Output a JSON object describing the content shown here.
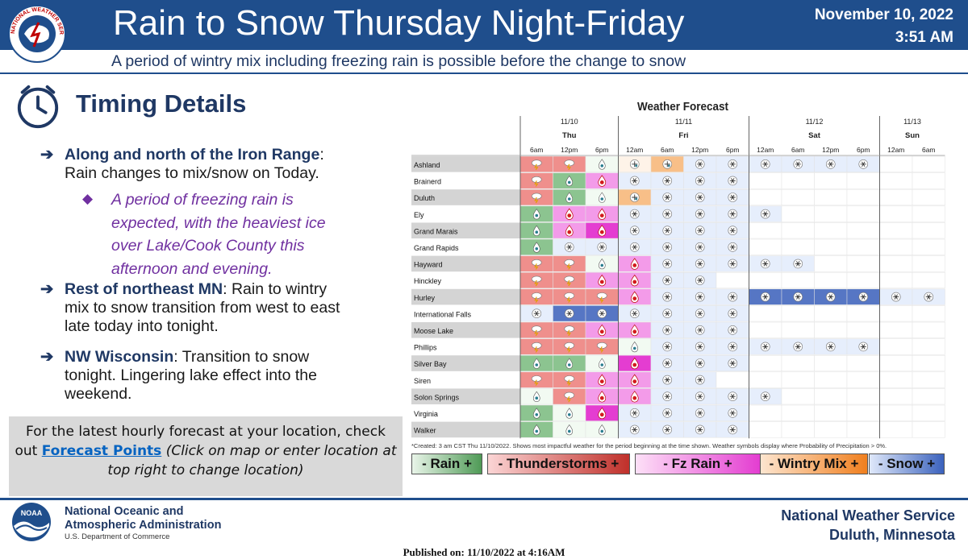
{
  "header": {
    "title": "Rain to Snow Thursday Night-Friday",
    "date": "November 10, 2022",
    "time": "3:51 AM",
    "subtitle": "A period of wintry mix including freezing rain is possible before the change to snow",
    "logo_text": "NATIONAL WEATHER SERVICE"
  },
  "section": {
    "title": "Timing Details"
  },
  "bullets": [
    {
      "bold": "Along and north of the Iron Range",
      "text1": ":",
      "text2": "Rain changes to mix/snow on Today."
    },
    {
      "bold": "Rest of northeast MN",
      "text1": ": Rain to wintry",
      "text2": "mix to snow transition from west to east",
      "text3": "late today into tonight."
    },
    {
      "bold": "NW Wisconsin",
      "text1": ": Transition to snow",
      "text2": "tonight. Lingering lake effect into the",
      "text3": "weekend."
    }
  ],
  "sub_bullet": {
    "l1": "A period of freezing rain is",
    "l2": "expected, with the heaviest ice",
    "l3": "over Lake/Cook County this",
    "l4": "afternoon and evening."
  },
  "info": {
    "line1": "For the latest hourly forecast at your location, check",
    "out": "out ",
    "link": "Forecast Points",
    "note1": "(Click on map or enter location at",
    "note2": "top right to change location)"
  },
  "forecast": {
    "title": "Weather Forecast",
    "days": [
      {
        "date": "11/10",
        "day": "Thu"
      },
      {
        "date": "11/11",
        "day": "Fri"
      },
      {
        "date": "11/12",
        "day": "Sat"
      },
      {
        "date": "11/13",
        "day": "Sun"
      }
    ],
    "times": [
      "6am",
      "12pm",
      "6pm",
      "12am",
      "6am",
      "12pm",
      "6pm",
      "12am",
      "6am",
      "12pm",
      "6pm",
      "12am",
      "6am"
    ],
    "locations": [
      "Ashland",
      "Brainerd",
      "Duluth",
      "Ely",
      "Grand Marais",
      "Grand Rapids",
      "Hayward",
      "Hinckley",
      "Hurley",
      "International Falls",
      "Moose Lake",
      "Phillips",
      "Silver Bay",
      "Siren",
      "Solon Springs",
      "Virginia",
      "Walker"
    ],
    "codes_legend": "r=rain, t=thunderstorms, f=freezing rain, w=wintry mix, s=snow; case=intensity (upper=heavy, lower=light, suffix 1=moderate); '-'=none",
    "cells": [
      [
        "t1",
        "t1",
        "r",
        "w",
        "w1",
        "s",
        "s",
        "s",
        "s",
        "s",
        "s",
        "-",
        "-"
      ],
      [
        "t1",
        "r1",
        "f1",
        "s",
        "s",
        "s",
        "s",
        "-",
        "-",
        "-",
        "-",
        "-",
        "-"
      ],
      [
        "t1",
        "r1",
        "r",
        "w1",
        "s",
        "s",
        "s",
        "-",
        "-",
        "-",
        "-",
        "-",
        "-"
      ],
      [
        "r1",
        "f1",
        "f1",
        "s",
        "s",
        "s",
        "s",
        "s",
        "-",
        "-",
        "-",
        "-",
        "-"
      ],
      [
        "r1",
        "f1",
        "F",
        "s",
        "s",
        "s",
        "s",
        "-",
        "-",
        "-",
        "-",
        "-",
        "-"
      ],
      [
        "r1",
        "s",
        "s",
        "s",
        "s",
        "s",
        "s",
        "-",
        "-",
        "-",
        "-",
        "-",
        "-"
      ],
      [
        "t1",
        "t1",
        "r",
        "f1",
        "s",
        "s",
        "s",
        "s",
        "s",
        "-",
        "-",
        "-",
        "-"
      ],
      [
        "t1",
        "t1",
        "f1",
        "f1",
        "s",
        "s",
        "-",
        "-",
        "-",
        "-",
        "-",
        "-",
        "-"
      ],
      [
        "t1",
        "t1",
        "t1",
        "f1",
        "s",
        "s",
        "s",
        "S",
        "S",
        "S",
        "S",
        "s",
        "s"
      ],
      [
        "s",
        "S",
        "S",
        "s",
        "s",
        "s",
        "s",
        "-",
        "-",
        "-",
        "-",
        "-",
        "-"
      ],
      [
        "t1",
        "t1",
        "f1",
        "f1",
        "s",
        "s",
        "s",
        "-",
        "-",
        "-",
        "-",
        "-",
        "-"
      ],
      [
        "t1",
        "t1",
        "t1",
        "r",
        "s",
        "s",
        "s",
        "s",
        "s",
        "s",
        "s",
        "-",
        "-"
      ],
      [
        "r1",
        "r1",
        "r",
        "F",
        "s",
        "s",
        "s",
        "-",
        "-",
        "-",
        "-",
        "-",
        "-"
      ],
      [
        "t1",
        "t1",
        "f1",
        "f1",
        "s",
        "s",
        "-",
        "-",
        "-",
        "-",
        "-",
        "-",
        "-"
      ],
      [
        "r",
        "t1",
        "f1",
        "f1",
        "s",
        "s",
        "s",
        "s",
        "-",
        "-",
        "-",
        "-",
        "-"
      ],
      [
        "r1",
        "r",
        "F",
        "s",
        "s",
        "s",
        "s",
        "-",
        "-",
        "-",
        "-",
        "-",
        "-"
      ],
      [
        "r1",
        "r",
        "r",
        "s",
        "s",
        "s",
        "s",
        "-",
        "-",
        "-",
        "-",
        "-",
        "-"
      ]
    ],
    "note": "*Created: 3 am CST Thu 11/10/2022. Shows most impactful weather for the period beginning at the time shown. Weather symbols display where Probability of Precipitation > 0%.",
    "legend": [
      {
        "label": "- Rain +",
        "colors": [
          "#e9f5e9",
          "#4f9a56"
        ]
      },
      {
        "label": "- Thunderstorms +",
        "colors": [
          "#fbd5d5",
          "#c0302a"
        ]
      },
      {
        "label": "-   Fz Rain   +",
        "colors": [
          "#fde0f7",
          "#e43dd1"
        ]
      },
      {
        "label": "- Wintry Mix +",
        "colors": [
          "#fde5cf",
          "#f07f1e"
        ]
      },
      {
        "label": "- Snow +",
        "colors": [
          "#dfe8fa",
          "#3b62bd"
        ]
      }
    ]
  },
  "footer": {
    "noaa1": "National Oceanic and",
    "noaa2": "Atmospheric Administration",
    "noaa_dept": "U.S. Department of Commerce",
    "nws1": "National Weather Service",
    "nws2": "Duluth, Minnesota",
    "published": "Published on: 11/10/2022 at 4:16AM",
    "noaa_logo_text": "NOAA"
  },
  "colors": {
    "banner": "#1f4e8c",
    "heading": "#1f3864",
    "sub_bullet": "#7030a0"
  }
}
